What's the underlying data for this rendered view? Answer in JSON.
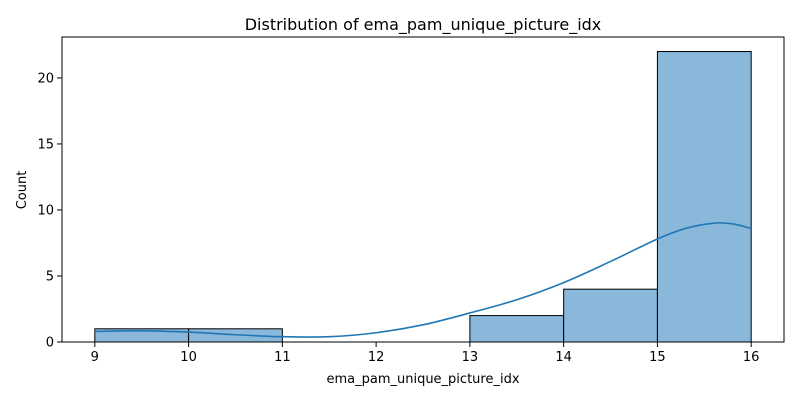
{
  "chart_data": {
    "type": "bar",
    "subtype": "histogram-with-kde",
    "title": "Distribution of ema_pam_unique_picture_idx",
    "xlabel": "ema_pam_unique_picture_idx",
    "ylabel": "Count",
    "xlim": [
      8.65,
      16.35
    ],
    "ylim": [
      0,
      23.1
    ],
    "xticks": [
      9,
      10,
      11,
      12,
      13,
      14,
      15,
      16
    ],
    "yticks": [
      0,
      5,
      10,
      15,
      20
    ],
    "bins": [
      {
        "x0": 9,
        "x1": 10,
        "count": 1
      },
      {
        "x0": 10,
        "x1": 11,
        "count": 1
      },
      {
        "x0": 11,
        "x1": 12,
        "count": 0
      },
      {
        "x0": 12,
        "x1": 13,
        "count": 0
      },
      {
        "x0": 13,
        "x1": 14,
        "count": 2
      },
      {
        "x0": 14,
        "x1": 15,
        "count": 4
      },
      {
        "x0": 15,
        "x1": 16,
        "count": 22
      }
    ],
    "kde": {
      "x": [
        9,
        9.5,
        10,
        10.5,
        11,
        11.5,
        12,
        12.5,
        13,
        13.5,
        14,
        14.5,
        15,
        15.3,
        15.6,
        15.8,
        16
      ],
      "y": [
        0.8,
        0.85,
        0.75,
        0.55,
        0.4,
        0.4,
        0.7,
        1.3,
        2.2,
        3.2,
        4.5,
        6.1,
        7.8,
        8.6,
        9.0,
        8.95,
        8.6
      ]
    },
    "grid": false,
    "colors": {
      "bar_fill": "#8ab8db",
      "bar_edge": "#000000",
      "kde_line": "#1f77b4"
    }
  }
}
